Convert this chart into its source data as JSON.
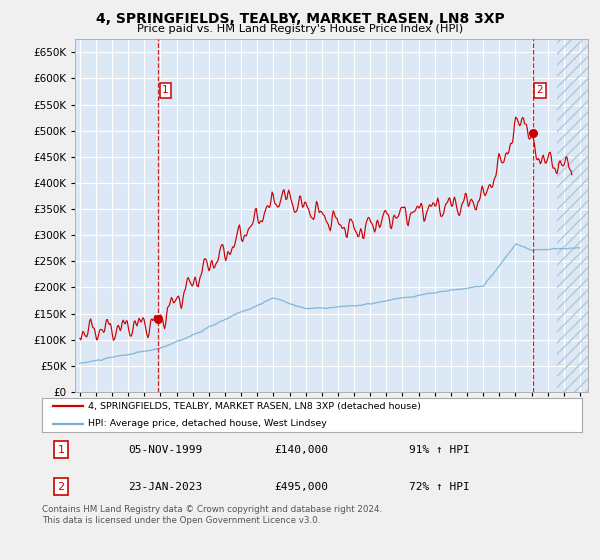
{
  "title": "4, SPRINGFIELDS, TEALBY, MARKET RASEN, LN8 3XP",
  "subtitle": "Price paid vs. HM Land Registry's House Price Index (HPI)",
  "x_start_year": 1995,
  "x_end_year": 2026,
  "ylim": [
    0,
    675000
  ],
  "yticks": [
    0,
    50000,
    100000,
    150000,
    200000,
    250000,
    300000,
    350000,
    400000,
    450000,
    500000,
    550000,
    600000,
    650000
  ],
  "sale1_year": 1999.85,
  "sale1_price": 140000,
  "sale2_year": 2023.06,
  "sale2_price": 495000,
  "red_line_color": "#cc0000",
  "blue_line_color": "#7ab0d4",
  "plot_bg_color": "#dce8f5",
  "grid_color": "#ffffff",
  "legend_line1": "4, SPRINGFIELDS, TEALBY, MARKET RASEN, LN8 3XP (detached house)",
  "legend_line2": "HPI: Average price, detached house, West Lindsey",
  "footer": "Contains HM Land Registry data © Crown copyright and database right 2024.\nThis data is licensed under the Open Government Licence v3.0.",
  "table_row1": [
    "1",
    "05-NOV-1999",
    "£140,000",
    "91% ↑ HPI"
  ],
  "table_row2": [
    "2",
    "23-JAN-2023",
    "£495,000",
    "72% ↑ HPI"
  ]
}
